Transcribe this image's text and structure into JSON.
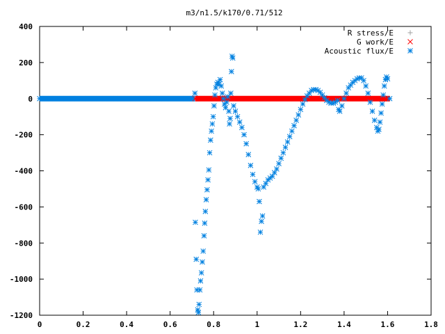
{
  "chart_data": {
    "type": "scatter",
    "title": "m3/n1.5/k170/0.71/512",
    "xlim": [
      0,
      1.8
    ],
    "ylim": [
      -1200,
      400
    ],
    "x_ticks": [
      "0",
      "0.2",
      "0.4",
      "0.6",
      "0.8",
      "1",
      "1.2",
      "1.4",
      "1.6",
      "1.8"
    ],
    "x_tick_values": [
      0,
      0.2,
      0.4,
      0.6,
      0.8,
      1.0,
      1.2,
      1.4,
      1.6,
      1.8
    ],
    "y_ticks": [
      "400",
      "200",
      "0",
      "-200",
      "-400",
      "-600",
      "-800",
      "-1000",
      "-1200"
    ],
    "y_tick_values": [
      400,
      200,
      0,
      -200,
      -400,
      -600,
      -800,
      -1000,
      -1200
    ],
    "grid": false,
    "legend_position": "top-right",
    "series": [
      {
        "name": "R stress/E",
        "marker": "plus",
        "color": "#a0a0a0",
        "points": []
      },
      {
        "name": "G work/E",
        "marker": "x",
        "color": "#ff0000",
        "points": [
          [
            0.715,
            0
          ],
          [
            0.75,
            0
          ],
          [
            0.8,
            0
          ],
          [
            0.85,
            0
          ],
          [
            0.9,
            0
          ],
          [
            0.95,
            0
          ],
          [
            1.0,
            0
          ],
          [
            1.05,
            0
          ],
          [
            1.1,
            0
          ],
          [
            1.15,
            0
          ],
          [
            1.2,
            0
          ],
          [
            1.25,
            0
          ],
          [
            1.3,
            0
          ],
          [
            1.35,
            0
          ],
          [
            1.4,
            0
          ],
          [
            1.45,
            0
          ],
          [
            1.5,
            0
          ],
          [
            1.55,
            0
          ],
          [
            1.6,
            0
          ]
        ]
      },
      {
        "name": "Acoustic flux/E",
        "marker": "star",
        "color": "#0080e0",
        "points": [
          [
            0.0,
            0
          ],
          [
            0.05,
            0
          ],
          [
            0.1,
            0
          ],
          [
            0.15,
            0
          ],
          [
            0.2,
            0
          ],
          [
            0.25,
            0
          ],
          [
            0.3,
            0
          ],
          [
            0.35,
            0
          ],
          [
            0.4,
            0
          ],
          [
            0.45,
            0
          ],
          [
            0.5,
            0
          ],
          [
            0.55,
            0
          ],
          [
            0.6,
            0
          ],
          [
            0.65,
            0
          ],
          [
            0.7,
            0
          ],
          [
            0.714,
            30
          ],
          [
            0.716,
            -685
          ],
          [
            0.72,
            -890
          ],
          [
            0.723,
            -1060
          ],
          [
            0.727,
            -1170
          ],
          [
            0.73,
            -1185
          ],
          [
            0.733,
            -1140
          ],
          [
            0.737,
            -1060
          ],
          [
            0.74,
            -1010
          ],
          [
            0.744,
            -965
          ],
          [
            0.748,
            -905
          ],
          [
            0.752,
            -845
          ],
          [
            0.756,
            -760
          ],
          [
            0.759,
            -690
          ],
          [
            0.762,
            -625
          ],
          [
            0.766,
            -560
          ],
          [
            0.77,
            -505
          ],
          [
            0.774,
            -450
          ],
          [
            0.778,
            -395
          ],
          [
            0.782,
            -300
          ],
          [
            0.786,
            -230
          ],
          [
            0.79,
            -180
          ],
          [
            0.794,
            -140
          ],
          [
            0.798,
            -100
          ],
          [
            0.802,
            -40
          ],
          [
            0.806,
            20
          ],
          [
            0.81,
            60
          ],
          [
            0.815,
            80
          ],
          [
            0.82,
            90
          ],
          [
            0.825,
            80
          ],
          [
            0.83,
            105
          ],
          [
            0.835,
            70
          ],
          [
            0.84,
            30
          ],
          [
            0.845,
            0
          ],
          [
            0.85,
            -30
          ],
          [
            0.855,
            -50
          ],
          [
            0.86,
            -20
          ],
          [
            0.865,
            10
          ],
          [
            0.87,
            -70
          ],
          [
            0.873,
            -140
          ],
          [
            0.876,
            -110
          ],
          [
            0.879,
            30
          ],
          [
            0.882,
            150
          ],
          [
            0.885,
            235
          ],
          [
            0.888,
            225
          ],
          [
            0.892,
            -40
          ],
          [
            0.9,
            -70
          ],
          [
            0.91,
            -100
          ],
          [
            0.92,
            -130
          ],
          [
            0.93,
            -160
          ],
          [
            0.94,
            -200
          ],
          [
            0.95,
            -250
          ],
          [
            0.96,
            -310
          ],
          [
            0.97,
            -370
          ],
          [
            0.98,
            -420
          ],
          [
            0.99,
            -460
          ],
          [
            1.0,
            -490
          ],
          [
            1.005,
            -500
          ],
          [
            1.01,
            -570
          ],
          [
            1.015,
            -740
          ],
          [
            1.02,
            -680
          ],
          [
            1.025,
            -650
          ],
          [
            1.03,
            -490
          ],
          [
            1.04,
            -470
          ],
          [
            1.05,
            -450
          ],
          [
            1.06,
            -440
          ],
          [
            1.07,
            -430
          ],
          [
            1.08,
            -410
          ],
          [
            1.09,
            -390
          ],
          [
            1.1,
            -360
          ],
          [
            1.11,
            -330
          ],
          [
            1.12,
            -300
          ],
          [
            1.13,
            -270
          ],
          [
            1.14,
            -240
          ],
          [
            1.15,
            -210
          ],
          [
            1.16,
            -180
          ],
          [
            1.17,
            -150
          ],
          [
            1.18,
            -120
          ],
          [
            1.19,
            -90
          ],
          [
            1.2,
            -60
          ],
          [
            1.21,
            -30
          ],
          [
            1.22,
            -5
          ],
          [
            1.23,
            15
          ],
          [
            1.24,
            30
          ],
          [
            1.25,
            45
          ],
          [
            1.26,
            50
          ],
          [
            1.27,
            50
          ],
          [
            1.28,
            45
          ],
          [
            1.29,
            35
          ],
          [
            1.3,
            20
          ],
          [
            1.31,
            5
          ],
          [
            1.32,
            -10
          ],
          [
            1.33,
            -20
          ],
          [
            1.34,
            -25
          ],
          [
            1.35,
            -25
          ],
          [
            1.36,
            -20
          ],
          [
            1.37,
            -10
          ],
          [
            1.375,
            -60
          ],
          [
            1.38,
            -70
          ],
          [
            1.39,
            -40
          ],
          [
            1.4,
            0
          ],
          [
            1.41,
            30
          ],
          [
            1.42,
            60
          ],
          [
            1.43,
            75
          ],
          [
            1.44,
            90
          ],
          [
            1.45,
            100
          ],
          [
            1.46,
            110
          ],
          [
            1.47,
            115
          ],
          [
            1.48,
            115
          ],
          [
            1.49,
            100
          ],
          [
            1.5,
            70
          ],
          [
            1.51,
            30
          ],
          [
            1.52,
            -20
          ],
          [
            1.53,
            -70
          ],
          [
            1.54,
            -120
          ],
          [
            1.55,
            -160
          ],
          [
            1.555,
            -180
          ],
          [
            1.56,
            -170
          ],
          [
            1.565,
            -130
          ],
          [
            1.57,
            -80
          ],
          [
            1.575,
            -30
          ],
          [
            1.58,
            20
          ],
          [
            1.585,
            70
          ],
          [
            1.59,
            105
          ],
          [
            1.595,
            120
          ],
          [
            1.6,
            110
          ],
          [
            1.61,
            0
          ]
        ]
      }
    ]
  }
}
